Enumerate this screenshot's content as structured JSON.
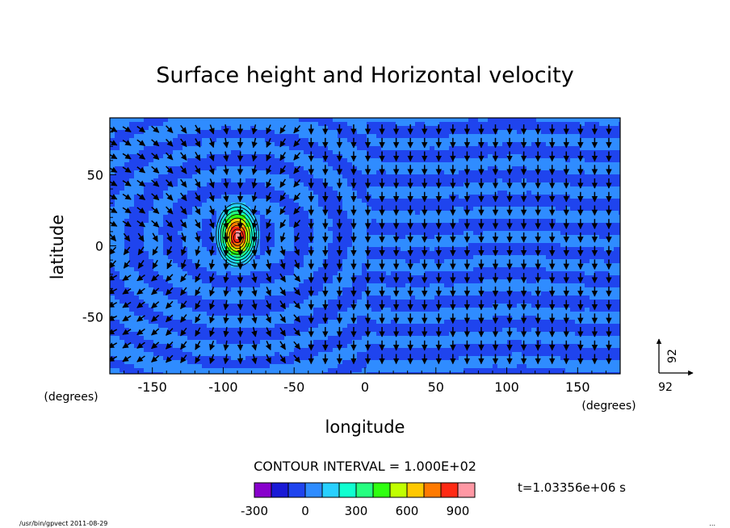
{
  "chart_data": {
    "type": "heatmap",
    "title": "Surface height and Horizontal velocity",
    "xlabel": "longitude",
    "ylabel": "latitude",
    "x_unit": "(degrees)",
    "y_unit": "(degrees)",
    "xlim": [
      -180,
      180
    ],
    "ylim": [
      -90,
      90
    ],
    "x_ticks": [
      -150,
      -100,
      -50,
      0,
      50,
      100,
      150
    ],
    "y_ticks": [
      50,
      0,
      -50
    ],
    "contour_interval_label": "CONTOUR INTERVAL = 1.000E+02",
    "time_label": "t=1.03356e+06 s",
    "footer_left": "/usr/bin/gpvect  2011-08-29",
    "footer_right": "...",
    "vector_reference": {
      "u": "92",
      "v": "92"
    },
    "colorbar": {
      "levels": [
        -300,
        -200,
        -100,
        0,
        100,
        200,
        300,
        400,
        500,
        600,
        700,
        800,
        900,
        1000
      ],
      "tick_labels": [
        "-300",
        "0",
        "300",
        "600",
        "900"
      ],
      "colors": [
        "#8800cc",
        "#1a1ad6",
        "#1f44ee",
        "#2f8cff",
        "#28d0ff",
        "#10ffd0",
        "#26ff80",
        "#30ff10",
        "#c0ff00",
        "#ffc800",
        "#ff7a00",
        "#ff2a14",
        "#ff98a4"
      ]
    },
    "features": {
      "peak": {
        "lon": -90,
        "lat": 8,
        "max": 1000
      },
      "background_levels": [
        -100,
        0
      ]
    }
  }
}
